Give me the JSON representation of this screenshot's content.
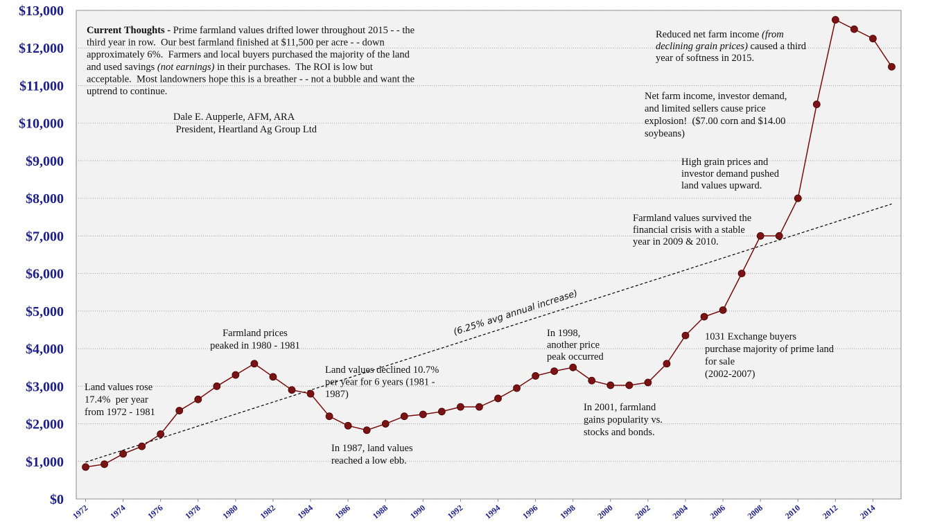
{
  "chart_data": {
    "type": "line",
    "x": [
      1972,
      1973,
      1974,
      1975,
      1976,
      1977,
      1978,
      1979,
      1980,
      1981,
      1982,
      1983,
      1984,
      1985,
      1986,
      1987,
      1988,
      1989,
      1990,
      1991,
      1992,
      1993,
      1994,
      1995,
      1996,
      1997,
      1998,
      1999,
      2000,
      2001,
      2002,
      2003,
      2004,
      2005,
      2006,
      2007,
      2008,
      2009,
      2010,
      2011,
      2012,
      2013,
      2014,
      2015
    ],
    "values": [
      850,
      925,
      1200,
      1400,
      1725,
      2350,
      2650,
      3000,
      3300,
      3600,
      3250,
      2900,
      2800,
      2200,
      1950,
      1830,
      2000,
      2200,
      2250,
      2325,
      2450,
      2450,
      2675,
      2950,
      3275,
      3400,
      3500,
      3150,
      3025,
      3025,
      3100,
      3600,
      4350,
      4850,
      5025,
      6000,
      7000,
      7000,
      8000,
      10500,
      12750,
      12500,
      12250,
      11500
    ],
    "color": "#7a0a0a",
    "marker_color": "#7a1414",
    "xlim": [
      1971.5,
      2015.5
    ],
    "xticks": [
      1972,
      1974,
      1976,
      1978,
      1980,
      1982,
      1984,
      1986,
      1988,
      1990,
      1992,
      1994,
      1996,
      1998,
      2000,
      2002,
      2004,
      2006,
      2008,
      2010,
      2012,
      2014
    ],
    "ylim": [
      0,
      13000
    ],
    "yticks": [
      {
        "value": 0,
        "label": "$0"
      },
      {
        "value": 1000,
        "label": "$1,000"
      },
      {
        "value": 2000,
        "label": "$2,000"
      },
      {
        "value": 3000,
        "label": "$3,000"
      },
      {
        "value": 4000,
        "label": "$4,000"
      },
      {
        "value": 5000,
        "label": "$5,000"
      },
      {
        "value": 6000,
        "label": "$6,000"
      },
      {
        "value": 7000,
        "label": "$7,000"
      },
      {
        "value": 8000,
        "label": "$8,000"
      },
      {
        "value": 9000,
        "label": "$9,000"
      },
      {
        "value": 10000,
        "label": "$10,000"
      },
      {
        "value": 11000,
        "label": "$11,000"
      },
      {
        "value": 12000,
        "label": "$12,000"
      },
      {
        "value": 13000,
        "label": "$13,000"
      }
    ],
    "grid": true,
    "trend": {
      "label": "(6.25% avg annual increase)",
      "x": [
        1972,
        2015
      ],
      "values": [
        980,
        7850
      ]
    },
    "annotations": [
      {
        "lines": [
          [
            {
              "bold": "Current Thoughts -"
            },
            " Prime farmland values drifted lower throughout 2015 - - the"
          ],
          [
            "third year in row.  Our best farmland finished at $11,500 per acre - - down"
          ],
          [
            "approximately 6%.  Farmers and local buyers purchased the majority of the land"
          ],
          [
            "and used savings ",
            {
              "italic": "(not earnings)"
            },
            " in their purchases.  The ROI is low but"
          ],
          [
            "acceptable.  Most landowners hope this is a breather - - not a bubble and want the"
          ],
          [
            "uptrend to continue."
          ]
        ]
      },
      {
        "lines": [
          [
            "Dale E. Aupperle, AFM, ARA"
          ],
          [
            " President, Heartland Ag Group Ltd"
          ]
        ]
      },
      {
        "lines": [
          [
            "Farmland prices"
          ],
          [
            "peaked in 1980 - 1981"
          ]
        ]
      },
      {
        "lines": [
          [
            "Land values rose"
          ],
          [
            "17.4%  per year"
          ],
          [
            "from 1972 - 1981"
          ]
        ]
      },
      {
        "lines": [
          [
            "Land values declined 10.7%"
          ],
          [
            "per year for 6 years (1981 -"
          ],
          [
            "1987)"
          ]
        ]
      },
      {
        "lines": [
          [
            "In 1987, land values"
          ],
          [
            "reached a low ebb."
          ]
        ]
      },
      {
        "lines": [
          [
            "In 1998,"
          ],
          [
            "another price"
          ],
          [
            "peak occurred"
          ]
        ]
      },
      {
        "lines": [
          [
            "In 2001, farmland"
          ],
          [
            "gains popularity vs."
          ],
          [
            "stocks and bonds."
          ]
        ]
      },
      {
        "lines": [
          [
            "1031 Exchange buyers"
          ],
          [
            "purchase majority of prime land"
          ],
          [
            "for sale"
          ],
          [
            "(2002-2007)"
          ]
        ]
      },
      {
        "lines": [
          [
            "Farmland values survived the"
          ],
          [
            "financial crisis with a stable"
          ],
          [
            "year in 2009 & 2010."
          ]
        ]
      },
      {
        "lines": [
          [
            "High grain prices and"
          ],
          [
            "investor demand pushed"
          ],
          [
            "land values upward."
          ]
        ]
      },
      {
        "lines": [
          [
            "Net farm income, investor demand,"
          ],
          [
            "and limited sellers cause price"
          ],
          [
            "explosion!  ($7.00 corn and $14.00"
          ],
          [
            "soybeans)"
          ]
        ]
      },
      {
        "lines": [
          [
            "Reduced net farm income ",
            {
              "italic": "(from"
            }
          ],
          [
            {
              "italic": "declining grain prices)"
            },
            " caused a third"
          ],
          [
            "year of softness in 2015."
          ]
        ]
      }
    ]
  }
}
